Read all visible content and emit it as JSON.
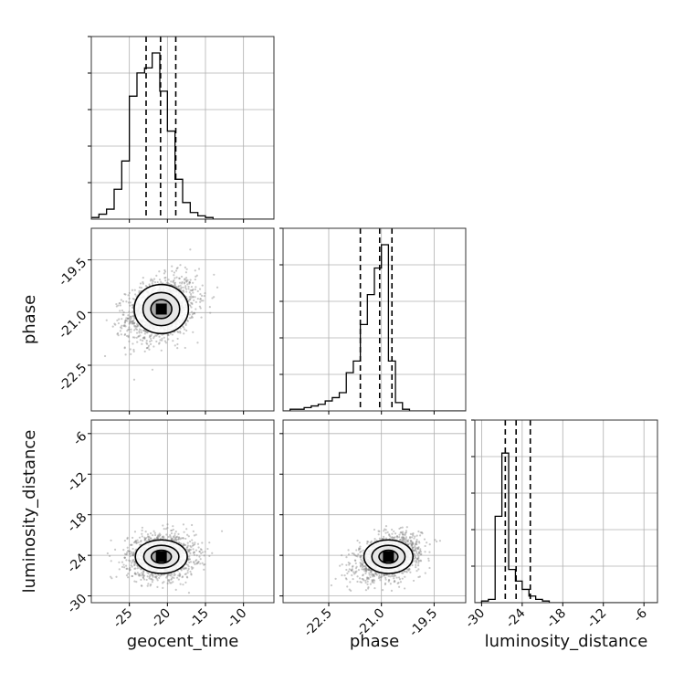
{
  "chart_data": {
    "type": "corner",
    "parameters": [
      "geocent_time",
      "phase",
      "luminosity_distance"
    ],
    "ranges": {
      "geocent_time": [
        -30,
        -6
      ],
      "phase": [
        -23.8,
        -18.6
      ],
      "luminosity_distance": [
        -31,
        -4
      ]
    },
    "ticks": {
      "geocent_time": [
        "-25",
        "-20",
        "-15",
        "-10"
      ],
      "phase": [
        "-22.5",
        "-21.0",
        "-19.5"
      ],
      "luminosity_distance": [
        "-30",
        "-24",
        "-18",
        "-12",
        "-6"
      ]
    },
    "tick_values": {
      "geocent_time": [
        -25,
        -20,
        -15,
        -10
      ],
      "phase": [
        -22.5,
        -21.0,
        -19.5
      ],
      "luminosity_distance": [
        -30,
        -24,
        -18,
        -12,
        -6
      ]
    },
    "grid": true,
    "marginals": {
      "geocent_time": {
        "bin_edges": [
          -30,
          -29,
          -28,
          -27,
          -26,
          -25,
          -24,
          -23,
          -22,
          -21,
          -20,
          -19,
          -18,
          -17,
          -16,
          -15,
          -14,
          -13,
          -12,
          -11,
          -10,
          -9,
          -8,
          -7,
          -6
        ],
        "counts": [
          0.01,
          0.03,
          0.06,
          0.18,
          0.35,
          0.74,
          0.88,
          0.91,
          1.0,
          0.77,
          0.53,
          0.24,
          0.1,
          0.04,
          0.02,
          0.01,
          0,
          0,
          0,
          0,
          0,
          0,
          0,
          0
        ],
        "quantiles": [
          -22.8,
          -20.9,
          -18.9
        ]
      },
      "phase": {
        "bin_edges": [
          -23.8,
          -23.6,
          -23.4,
          -23.2,
          -23.0,
          -22.8,
          -22.6,
          -22.4,
          -22.2,
          -22.0,
          -21.8,
          -21.6,
          -21.4,
          -21.2,
          -21.0,
          -20.8,
          -20.6,
          -20.4,
          -20.2,
          -20.0,
          -19.8,
          -19.6,
          -19.4,
          -19.2,
          -19.0,
          -18.8,
          -18.6
        ],
        "counts": [
          0,
          0.01,
          0.01,
          0.02,
          0.03,
          0.04,
          0.06,
          0.08,
          0.11,
          0.23,
          0.3,
          0.52,
          0.7,
          0.86,
          1.0,
          0.3,
          0.05,
          0.01,
          0,
          0,
          0,
          0,
          0,
          0,
          0,
          0
        ],
        "quantiles": [
          -21.6,
          -21.05,
          -20.7
        ]
      },
      "luminosity_distance": {
        "bin_edges": [
          -31,
          -30,
          -29,
          -28,
          -27,
          -26,
          -25,
          -24,
          -23,
          -22,
          -21,
          -20,
          -19,
          -18,
          -17,
          -16,
          -15,
          -14,
          -13,
          -12,
          -11,
          -10,
          -9,
          -8,
          -7,
          -6,
          -5,
          -4
        ],
        "counts": [
          0,
          0.01,
          0.02,
          0.52,
          0.9,
          0.2,
          0.13,
          0.08,
          0.04,
          0.02,
          0.01,
          0,
          0,
          0,
          0,
          0,
          0,
          0,
          0,
          0,
          0,
          0,
          0,
          0,
          0,
          0,
          0
        ],
        "quantiles": [
          -26.5,
          -24.9,
          -22.8
        ]
      }
    },
    "joint": {
      "phase_vs_geocent_time": {
        "center": [
          -20.8,
          -20.9
        ],
        "sigma": [
          2.3,
          0.45
        ],
        "corr": 0.3,
        "n_points": 1500
      },
      "luminosity_distance_vs_geocent_time": {
        "center": [
          -20.8,
          -24.2
        ],
        "sigma": [
          2.2,
          1.6
        ],
        "corr": 0.05,
        "n_points": 1500
      },
      "luminosity_distance_vs_phase": {
        "center": [
          -20.8,
          -24.2
        ],
        "sigma": [
          0.45,
          1.6
        ],
        "corr": 0.35,
        "n_points": 1500
      }
    }
  }
}
